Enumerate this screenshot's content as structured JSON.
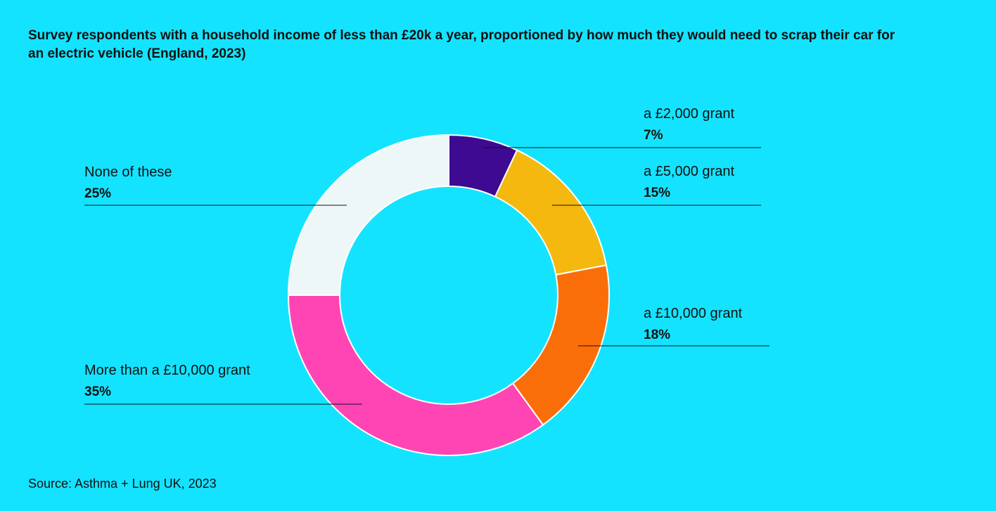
{
  "chart_data": {
    "type": "pie",
    "title": "Survey respondents with a household income of less than £20k a year, proportioned by how much they would need to scrap their car for an electric vehicle (England, 2023)",
    "categories": [
      "a £2,000 grant",
      "a £5,000  grant",
      "a £10,000  grant",
      "More than a £10,000 grant",
      "None of these"
    ],
    "values": [
      7,
      15,
      18,
      35,
      25
    ],
    "value_labels": [
      "7%",
      "15%",
      "18%",
      "35%",
      "25%"
    ],
    "colors": [
      "#3d0a91",
      "#f5b80f",
      "#fa6e0a",
      "#ff45b4",
      "#eef7f8"
    ],
    "donut": true,
    "source": "Source: Asthma + Lung UK, 2023"
  }
}
